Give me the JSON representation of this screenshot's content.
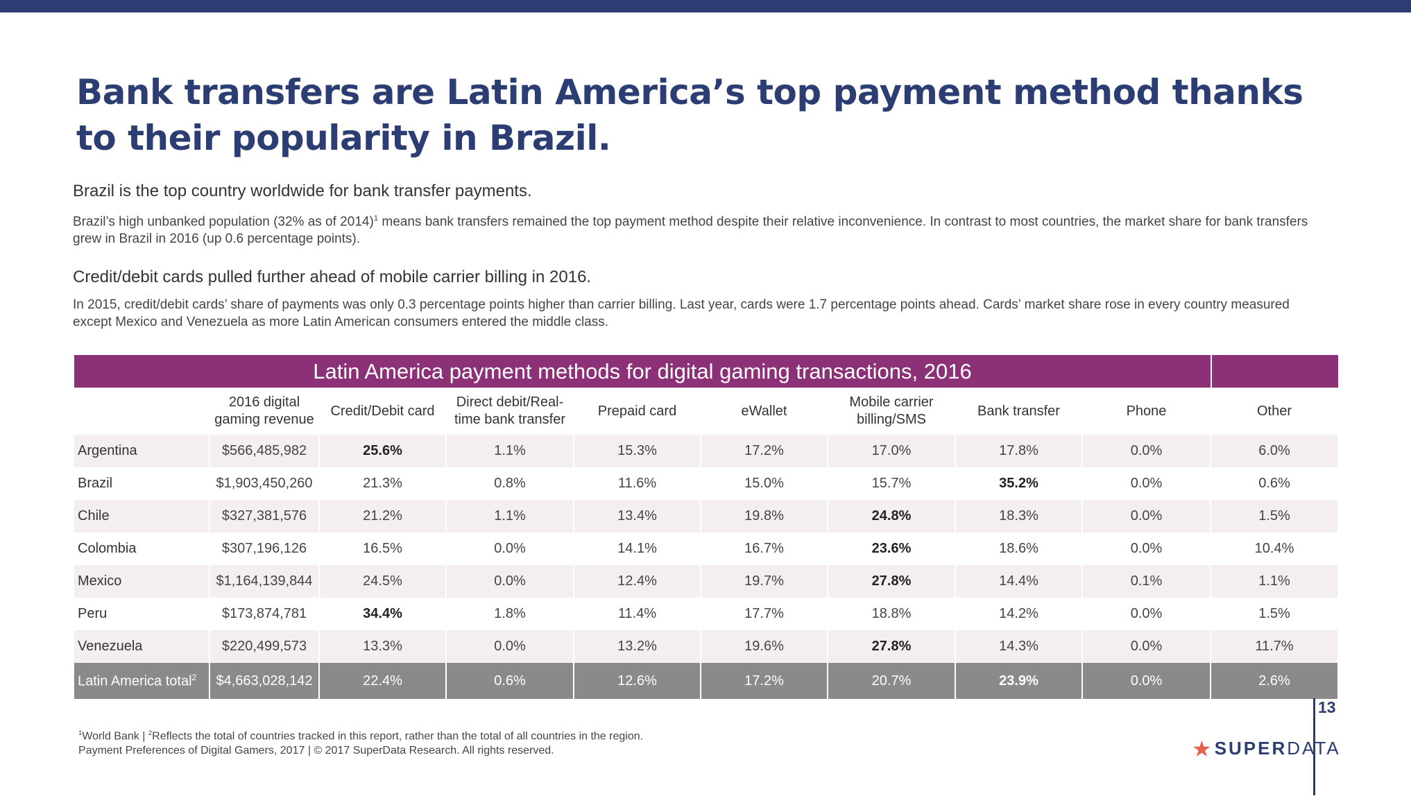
{
  "title": "Bank transfers are Latin America’s top payment method thanks to their popularity in Brazil.",
  "section1": {
    "heading": "Brazil is the top country worldwide for bank transfer payments.",
    "body_before_sup": "Brazil’s high unbanked population (32% as of 2014)",
    "sup": "1",
    "body_after_sup": " means bank transfers remained the top payment method despite their relative inconvenience. In contrast to most countries, the market share for bank transfers grew in Brazil in 2016 (up 0.6 percentage points)."
  },
  "section2": {
    "heading": "Credit/debit cards pulled further ahead of mobile carrier billing in 2016.",
    "body": "In 2015, credit/debit cards’ share of payments was only 0.3 percentage points higher than carrier billing. Last year, cards were 1.7 percentage points ahead. Cards’ market share rose in every country measured except Mexico and Venezuela as more Latin American consumers entered the middle class."
  },
  "table": {
    "title": "Latin America payment methods for digital gaming transactions, 2016",
    "headers": [
      "",
      "2016 digital gaming revenue",
      "Credit/Debit card",
      "Direct debit/Real-time bank transfer",
      "Prepaid card",
      "eWallet",
      "Mobile carrier billing/SMS",
      "Bank transfer",
      "Phone",
      "Other"
    ],
    "rows": [
      {
        "country": "Argentina",
        "revenue": "$566,485,982",
        "credit": "25.6%",
        "direct": "1.1%",
        "prepaid": "15.3%",
        "ewallet": "17.2%",
        "mobile": "17.0%",
        "bank": "17.8%",
        "phone": "0.0%",
        "other": "6.0%",
        "bold": "credit"
      },
      {
        "country": "Brazil",
        "revenue": "$1,903,450,260",
        "credit": "21.3%",
        "direct": "0.8%",
        "prepaid": "11.6%",
        "ewallet": "15.0%",
        "mobile": "15.7%",
        "bank": "35.2%",
        "phone": "0.0%",
        "other": "0.6%",
        "bold": "bank"
      },
      {
        "country": "Chile",
        "revenue": "$327,381,576",
        "credit": "21.2%",
        "direct": "1.1%",
        "prepaid": "13.4%",
        "ewallet": "19.8%",
        "mobile": "24.8%",
        "bank": "18.3%",
        "phone": "0.0%",
        "other": "1.5%",
        "bold": "mobile"
      },
      {
        "country": "Colombia",
        "revenue": "$307,196,126",
        "credit": "16.5%",
        "direct": "0.0%",
        "prepaid": "14.1%",
        "ewallet": "16.7%",
        "mobile": "23.6%",
        "bank": "18.6%",
        "phone": "0.0%",
        "other": "10.4%",
        "bold": "mobile"
      },
      {
        "country": "Mexico",
        "revenue": "$1,164,139,844",
        "credit": "24.5%",
        "direct": "0.0%",
        "prepaid": "12.4%",
        "ewallet": "19.7%",
        "mobile": "27.8%",
        "bank": "14.4%",
        "phone": "0.1%",
        "other": "1.1%",
        "bold": "mobile"
      },
      {
        "country": "Peru",
        "revenue": "$173,874,781",
        "credit": "34.4%",
        "direct": "1.8%",
        "prepaid": "11.4%",
        "ewallet": "17.7%",
        "mobile": "18.8%",
        "bank": "14.2%",
        "phone": "0.0%",
        "other": "1.5%",
        "bold": "credit"
      },
      {
        "country": "Venezuela",
        "revenue": "$220,499,573",
        "credit": "13.3%",
        "direct": "0.0%",
        "prepaid": "13.2%",
        "ewallet": "19.6%",
        "mobile": "27.8%",
        "bank": "14.3%",
        "phone": "0.0%",
        "other": "11.7%",
        "bold": "mobile"
      }
    ],
    "total": {
      "country": "Latin America total",
      "sup": "2",
      "revenue": "$4,663,028,142",
      "credit": "22.4%",
      "direct": "0.6%",
      "prepaid": "12.6%",
      "ewallet": "17.2%",
      "mobile": "20.7%",
      "bank": "23.9%",
      "phone": "0.0%",
      "other": "2.6%",
      "bold": "bank"
    }
  },
  "footnotes": {
    "line1_sup1": "1",
    "line1_a": "World Bank | ",
    "line1_sup2": "2",
    "line1_b": "Reflects the total of countries tracked in this report, rather than the total of all countries in the region.",
    "line2": "Payment Preferences of Digital Gamers, 2017  |  © 2017 SuperData Research. All rights reserved."
  },
  "page_number": "13",
  "logo": {
    "bold": "SUPER",
    "light": "DATA",
    "icon": "star-icon"
  },
  "colors": {
    "navy": "#2b3d73",
    "purple": "#8c3077",
    "row_shade": "#f4eef3",
    "total_gray": "#8a8a8a",
    "star": "#e8634a"
  }
}
